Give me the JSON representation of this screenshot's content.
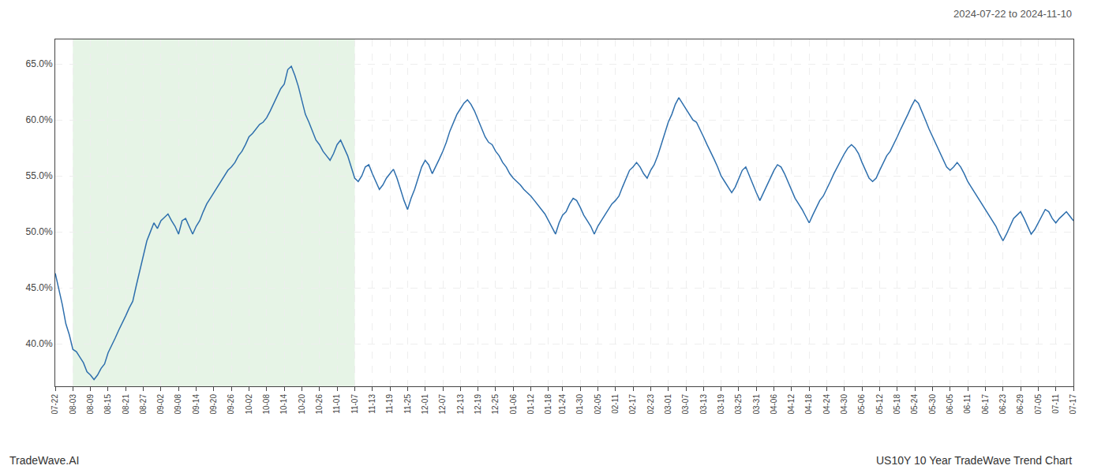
{
  "chart_data": {
    "type": "line",
    "annotations": [
      "2024-07-22 to 2024-11-10",
      "TradeWave.AI",
      "US10Y 10 Year TradeWave Trend Chart"
    ],
    "categories": [
      "07-22",
      null,
      null,
      null,
      null,
      "08-03",
      null,
      null,
      null,
      null,
      "08-09",
      null,
      null,
      null,
      null,
      "08-15",
      null,
      null,
      null,
      null,
      "08-21",
      null,
      null,
      null,
      null,
      "08-27",
      null,
      null,
      null,
      null,
      "09-02",
      null,
      null,
      null,
      null,
      "09-08",
      null,
      null,
      null,
      null,
      "09-14",
      null,
      null,
      null,
      null,
      "09-20",
      null,
      null,
      null,
      null,
      "09-26",
      null,
      null,
      null,
      null,
      "10-02",
      null,
      null,
      null,
      null,
      "10-08",
      null,
      null,
      null,
      null,
      "10-14",
      null,
      null,
      null,
      null,
      "10-20",
      null,
      null,
      null,
      null,
      "10-26",
      null,
      null,
      null,
      null,
      "11-01",
      null,
      null,
      null,
      null,
      "11-07",
      null,
      null,
      null,
      null,
      "11-13",
      null,
      null,
      null,
      null,
      "11-19",
      null,
      null,
      null,
      null,
      "11-25",
      null,
      null,
      null,
      null,
      "12-01",
      null,
      null,
      null,
      null,
      "12-07",
      null,
      null,
      null,
      null,
      "12-13",
      null,
      null,
      null,
      null,
      "12-19",
      null,
      null,
      null,
      null,
      "12-25",
      null,
      null,
      null,
      null,
      "01-06",
      null,
      null,
      null,
      null,
      "01-12",
      null,
      null,
      null,
      null,
      "01-18",
      null,
      null,
      null,
      "01-24",
      null,
      null,
      null,
      null,
      "01-30",
      null,
      null,
      null,
      null,
      "02-05",
      null,
      null,
      null,
      null,
      "02-11",
      null,
      null,
      null,
      null,
      "02-17",
      null,
      null,
      null,
      null,
      "02-23",
      null,
      null,
      null,
      null,
      "03-01",
      null,
      null,
      null,
      null,
      "03-07",
      null,
      null,
      null,
      null,
      "03-13",
      null,
      null,
      null,
      null,
      "03-19",
      null,
      null,
      null,
      null,
      "03-25",
      null,
      null,
      null,
      null,
      "03-31",
      null,
      null,
      null,
      null,
      "04-06",
      null,
      null,
      null,
      null,
      "04-12",
      null,
      null,
      null,
      null,
      "04-18",
      null,
      null,
      null,
      null,
      "04-24",
      null,
      null,
      null,
      null,
      "04-30",
      null,
      null,
      null,
      null,
      "05-06",
      null,
      null,
      null,
      null,
      "05-12",
      null,
      null,
      null,
      null,
      "05-18",
      null,
      null,
      null,
      null,
      "05-24",
      null,
      null,
      null,
      null,
      "05-30",
      null,
      null,
      null,
      null,
      "06-05",
      null,
      null,
      null,
      null,
      "06-11",
      null,
      null,
      null,
      null,
      "06-17",
      null,
      null,
      null,
      null,
      "06-23",
      null,
      null,
      null,
      null,
      "06-29",
      null,
      null,
      null,
      null,
      "07-05",
      null,
      null,
      null,
      null,
      "07-11",
      null,
      null,
      null,
      null,
      "07-17"
    ],
    "values": [
      0.463,
      0.45,
      0.435,
      0.418,
      0.408,
      0.395,
      0.393,
      0.388,
      0.383,
      0.375,
      0.372,
      0.368,
      0.372,
      0.378,
      0.382,
      0.392,
      0.398,
      0.405,
      0.412,
      0.418,
      0.425,
      0.432,
      0.438,
      0.452,
      0.465,
      0.478,
      0.492,
      0.5,
      0.508,
      0.503,
      0.51,
      0.513,
      0.516,
      0.51,
      0.505,
      0.498,
      0.51,
      0.512,
      0.505,
      0.498,
      0.505,
      0.51,
      0.518,
      0.525,
      0.53,
      0.535,
      0.54,
      0.545,
      0.55,
      0.555,
      0.558,
      0.562,
      0.568,
      0.572,
      0.578,
      0.585,
      0.588,
      0.592,
      0.596,
      0.598,
      0.602,
      0.608,
      0.615,
      0.622,
      0.628,
      0.632,
      0.645,
      0.648,
      0.64,
      0.63,
      0.618,
      0.605,
      0.598,
      0.59,
      0.582,
      0.578,
      0.572,
      0.568,
      0.564,
      0.57,
      0.578,
      0.582,
      0.575,
      0.568,
      0.558,
      0.548,
      0.545,
      0.55,
      0.558,
      0.56,
      0.552,
      0.545,
      0.538,
      0.542,
      0.548,
      0.552,
      0.556,
      0.548,
      0.538,
      0.528,
      0.52,
      0.53,
      0.538,
      0.548,
      0.558,
      0.564,
      0.56,
      0.552,
      0.558,
      0.565,
      0.572,
      0.58,
      0.59,
      0.598,
      0.605,
      0.61,
      0.615,
      0.618,
      0.614,
      0.608,
      0.6,
      0.592,
      0.585,
      0.58,
      0.578,
      0.572,
      0.568,
      0.562,
      0.558,
      0.552,
      0.548,
      0.545,
      0.542,
      0.538,
      0.535,
      0.532,
      0.528,
      0.524,
      0.52,
      0.516,
      0.51,
      0.504,
      0.498,
      0.508,
      0.515,
      0.518,
      0.525,
      0.53,
      0.528,
      0.522,
      0.515,
      0.51,
      0.505,
      0.498,
      0.505,
      0.51,
      0.515,
      0.52,
      0.525,
      0.528,
      0.532,
      0.54,
      0.548,
      0.555,
      0.558,
      0.562,
      0.558,
      0.552,
      0.548,
      0.555,
      0.56,
      0.568,
      0.578,
      0.588,
      0.598,
      0.605,
      0.614,
      0.62,
      0.615,
      0.61,
      0.605,
      0.6,
      0.598,
      0.592,
      0.585,
      0.578,
      0.572,
      0.565,
      0.558,
      0.55,
      0.545,
      0.54,
      0.535,
      0.54,
      0.548,
      0.555,
      0.558,
      0.55,
      0.542,
      0.535,
      0.528,
      0.535,
      0.542,
      0.548,
      0.555,
      0.56,
      0.558,
      0.552,
      0.545,
      0.538,
      0.53,
      0.525,
      0.52,
      0.514,
      0.508,
      0.515,
      0.522,
      0.528,
      0.532,
      0.538,
      0.545,
      0.552,
      0.558,
      0.565,
      0.57,
      0.575,
      0.578,
      0.575,
      0.57,
      0.562,
      0.555,
      0.548,
      0.545,
      0.548,
      0.555,
      0.562,
      0.568,
      0.572,
      0.578,
      0.585,
      0.592,
      0.598,
      0.605,
      0.612,
      0.618,
      0.615,
      0.608,
      0.6,
      0.592,
      0.585,
      0.578,
      0.572,
      0.565,
      0.558,
      0.555,
      0.558,
      0.562,
      0.558,
      0.552,
      0.545,
      0.54,
      0.535,
      0.53,
      0.525,
      0.52,
      0.515,
      0.51,
      0.505,
      0.498,
      0.492,
      0.498,
      0.505,
      0.512,
      0.515,
      0.518,
      0.512,
      0.505,
      0.498,
      0.502,
      0.508,
      0.515,
      0.52,
      0.518,
      0.512,
      0.508,
      0.512,
      0.515,
      0.518,
      0.514,
      0.51
    ],
    "color": "#2e6fad",
    "shaded_region": {
      "start": "08-03",
      "end": "11-07",
      "color": "#c8e6c8"
    },
    "ylim": [
      0.362,
      0.672
    ],
    "yticks": [
      {
        "value": 0.4,
        "label": "40.0%"
      },
      {
        "value": 0.45,
        "label": "45.0%"
      },
      {
        "value": 0.5,
        "label": "50.0%"
      },
      {
        "value": 0.55,
        "label": "55.0%"
      },
      {
        "value": 0.6,
        "label": "60.0%"
      },
      {
        "value": 0.65,
        "label": "65.0%"
      }
    ],
    "grid": true
  }
}
